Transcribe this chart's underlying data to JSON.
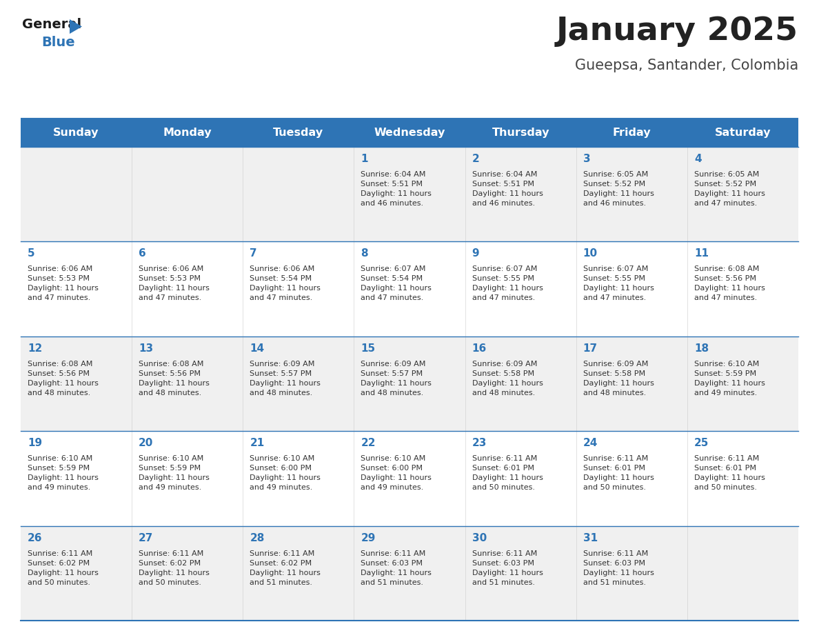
{
  "title": "January 2025",
  "subtitle": "Gueepsa, Santander, Colombia",
  "title_color": "#222222",
  "subtitle_color": "#444444",
  "header_bg_color": "#2E74B5",
  "header_text_color": "#FFFFFF",
  "row_bg_even": "#F0F0F0",
  "row_bg_odd": "#FFFFFF",
  "separator_color": "#2E74B5",
  "text_color": "#333333",
  "day_num_color": "#2E74B5",
  "day_names": [
    "Sunday",
    "Monday",
    "Tuesday",
    "Wednesday",
    "Thursday",
    "Friday",
    "Saturday"
  ],
  "calendar": [
    [
      {
        "day": 0,
        "info": ""
      },
      {
        "day": 0,
        "info": ""
      },
      {
        "day": 0,
        "info": ""
      },
      {
        "day": 1,
        "info": "Sunrise: 6:04 AM\nSunset: 5:51 PM\nDaylight: 11 hours\nand 46 minutes."
      },
      {
        "day": 2,
        "info": "Sunrise: 6:04 AM\nSunset: 5:51 PM\nDaylight: 11 hours\nand 46 minutes."
      },
      {
        "day": 3,
        "info": "Sunrise: 6:05 AM\nSunset: 5:52 PM\nDaylight: 11 hours\nand 46 minutes."
      },
      {
        "day": 4,
        "info": "Sunrise: 6:05 AM\nSunset: 5:52 PM\nDaylight: 11 hours\nand 47 minutes."
      }
    ],
    [
      {
        "day": 5,
        "info": "Sunrise: 6:06 AM\nSunset: 5:53 PM\nDaylight: 11 hours\nand 47 minutes."
      },
      {
        "day": 6,
        "info": "Sunrise: 6:06 AM\nSunset: 5:53 PM\nDaylight: 11 hours\nand 47 minutes."
      },
      {
        "day": 7,
        "info": "Sunrise: 6:06 AM\nSunset: 5:54 PM\nDaylight: 11 hours\nand 47 minutes."
      },
      {
        "day": 8,
        "info": "Sunrise: 6:07 AM\nSunset: 5:54 PM\nDaylight: 11 hours\nand 47 minutes."
      },
      {
        "day": 9,
        "info": "Sunrise: 6:07 AM\nSunset: 5:55 PM\nDaylight: 11 hours\nand 47 minutes."
      },
      {
        "day": 10,
        "info": "Sunrise: 6:07 AM\nSunset: 5:55 PM\nDaylight: 11 hours\nand 47 minutes."
      },
      {
        "day": 11,
        "info": "Sunrise: 6:08 AM\nSunset: 5:56 PM\nDaylight: 11 hours\nand 47 minutes."
      }
    ],
    [
      {
        "day": 12,
        "info": "Sunrise: 6:08 AM\nSunset: 5:56 PM\nDaylight: 11 hours\nand 48 minutes."
      },
      {
        "day": 13,
        "info": "Sunrise: 6:08 AM\nSunset: 5:56 PM\nDaylight: 11 hours\nand 48 minutes."
      },
      {
        "day": 14,
        "info": "Sunrise: 6:09 AM\nSunset: 5:57 PM\nDaylight: 11 hours\nand 48 minutes."
      },
      {
        "day": 15,
        "info": "Sunrise: 6:09 AM\nSunset: 5:57 PM\nDaylight: 11 hours\nand 48 minutes."
      },
      {
        "day": 16,
        "info": "Sunrise: 6:09 AM\nSunset: 5:58 PM\nDaylight: 11 hours\nand 48 minutes."
      },
      {
        "day": 17,
        "info": "Sunrise: 6:09 AM\nSunset: 5:58 PM\nDaylight: 11 hours\nand 48 minutes."
      },
      {
        "day": 18,
        "info": "Sunrise: 6:10 AM\nSunset: 5:59 PM\nDaylight: 11 hours\nand 49 minutes."
      }
    ],
    [
      {
        "day": 19,
        "info": "Sunrise: 6:10 AM\nSunset: 5:59 PM\nDaylight: 11 hours\nand 49 minutes."
      },
      {
        "day": 20,
        "info": "Sunrise: 6:10 AM\nSunset: 5:59 PM\nDaylight: 11 hours\nand 49 minutes."
      },
      {
        "day": 21,
        "info": "Sunrise: 6:10 AM\nSunset: 6:00 PM\nDaylight: 11 hours\nand 49 minutes."
      },
      {
        "day": 22,
        "info": "Sunrise: 6:10 AM\nSunset: 6:00 PM\nDaylight: 11 hours\nand 49 minutes."
      },
      {
        "day": 23,
        "info": "Sunrise: 6:11 AM\nSunset: 6:01 PM\nDaylight: 11 hours\nand 50 minutes."
      },
      {
        "day": 24,
        "info": "Sunrise: 6:11 AM\nSunset: 6:01 PM\nDaylight: 11 hours\nand 50 minutes."
      },
      {
        "day": 25,
        "info": "Sunrise: 6:11 AM\nSunset: 6:01 PM\nDaylight: 11 hours\nand 50 minutes."
      }
    ],
    [
      {
        "day": 26,
        "info": "Sunrise: 6:11 AM\nSunset: 6:02 PM\nDaylight: 11 hours\nand 50 minutes."
      },
      {
        "day": 27,
        "info": "Sunrise: 6:11 AM\nSunset: 6:02 PM\nDaylight: 11 hours\nand 50 minutes."
      },
      {
        "day": 28,
        "info": "Sunrise: 6:11 AM\nSunset: 6:02 PM\nDaylight: 11 hours\nand 51 minutes."
      },
      {
        "day": 29,
        "info": "Sunrise: 6:11 AM\nSunset: 6:03 PM\nDaylight: 11 hours\nand 51 minutes."
      },
      {
        "day": 30,
        "info": "Sunrise: 6:11 AM\nSunset: 6:03 PM\nDaylight: 11 hours\nand 51 minutes."
      },
      {
        "day": 31,
        "info": "Sunrise: 6:11 AM\nSunset: 6:03 PM\nDaylight: 11 hours\nand 51 minutes."
      },
      {
        "day": 0,
        "info": ""
      }
    ]
  ],
  "logo_general_color": "#1a1a1a",
  "logo_blue_color": "#2E74B5",
  "logo_triangle_color": "#2E74B5"
}
